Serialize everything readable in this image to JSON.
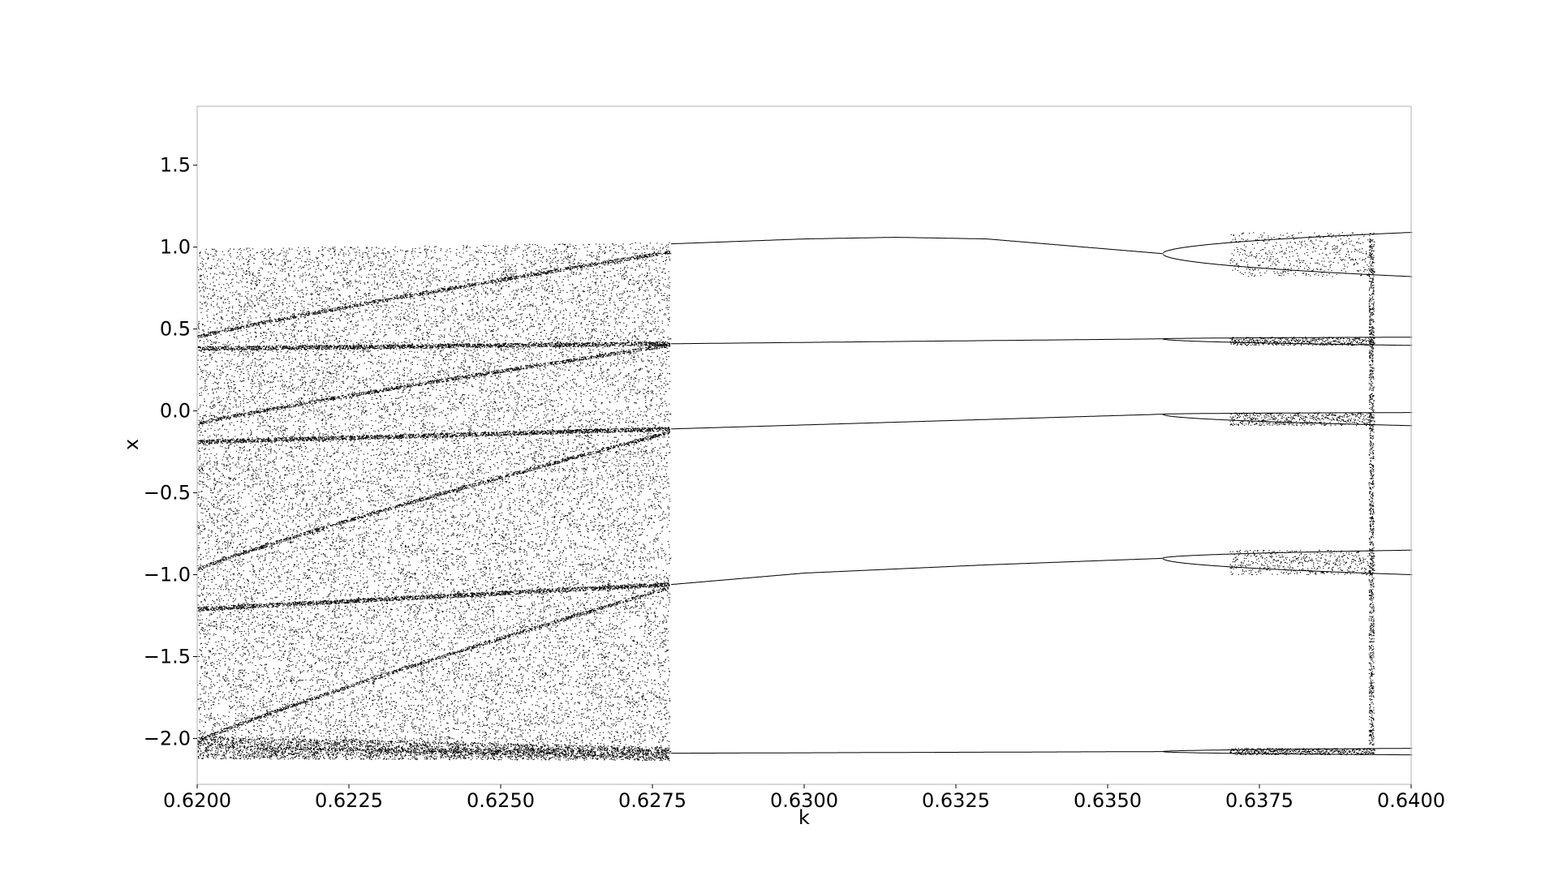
{
  "chart_data": {
    "type": "scatter",
    "title": "",
    "xlabel": "k",
    "ylabel": "x",
    "xlim": [
      0.62,
      0.64
    ],
    "ylim": [
      -2.28,
      1.86
    ],
    "grid": false,
    "legend": "none",
    "marker_color": "#000000",
    "x_ticks": [
      0.62,
      0.6225,
      0.625,
      0.6275,
      0.63,
      0.6325,
      0.635,
      0.6375,
      0.64
    ],
    "x_tick_labels": [
      "0.6200",
      "0.6225",
      "0.6250",
      "0.6275",
      "0.6300",
      "0.6325",
      "0.6350",
      "0.6375",
      "0.6400"
    ],
    "y_ticks": [
      1.5,
      1.0,
      0.5,
      0.0,
      -0.5,
      -1.0,
      -1.5,
      -2.0
    ],
    "y_tick_labels": [
      "1.5",
      "1.0",
      "0.5",
      "0.0",
      "−0.5",
      "−1.0",
      "−1.5",
      "−2.0"
    ],
    "regimes": [
      {
        "name": "chaotic",
        "k_range": [
          0.62,
          0.62778
        ],
        "x_range": [
          -2.1,
          1.02
        ]
      },
      {
        "name": "period-5",
        "k_range": [
          0.62778,
          0.6359
        ]
      },
      {
        "name": "period-10",
        "k_range": [
          0.6359,
          0.637
        ]
      },
      {
        "name": "period-doubling-cascade",
        "k_range": [
          0.637,
          0.6394
        ]
      },
      {
        "name": "period-10-window",
        "k_range": [
          0.6394,
          0.64
        ]
      }
    ],
    "period5_branches": [
      {
        "k": [
          0.6278,
          0.63,
          0.6315,
          0.633,
          0.6359
        ],
        "x": [
          1.02,
          1.05,
          1.06,
          1.05,
          0.96
        ]
      },
      {
        "k": [
          0.6278,
          0.6359
        ],
        "x": [
          0.41,
          0.44
        ]
      },
      {
        "k": [
          0.6278,
          0.6359
        ],
        "x": [
          -0.11,
          -0.02
        ]
      },
      {
        "k": [
          0.6278,
          0.63,
          0.633,
          0.6359
        ],
        "x": [
          -1.06,
          -0.99,
          -0.94,
          -0.9
        ]
      },
      {
        "k": [
          0.6278,
          0.6359
        ],
        "x": [
          -2.09,
          -2.08
        ]
      }
    ],
    "period10_pairs_at_k_0_64": [
      [
        1.09,
        0.82
      ],
      [
        0.45,
        0.4
      ],
      [
        -0.01,
        -0.09
      ],
      [
        -0.85,
        -1.0
      ],
      [
        -2.06,
        -2.1
      ]
    ]
  }
}
